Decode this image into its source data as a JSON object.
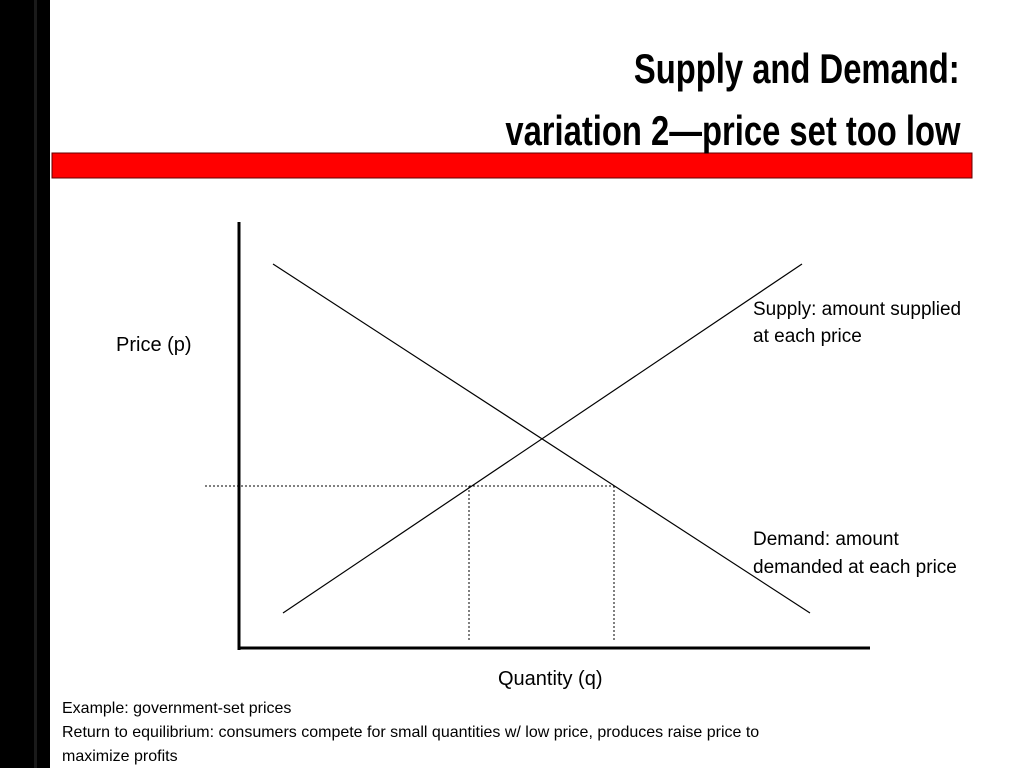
{
  "header": {
    "title": [
      "Supply and Demand:",
      "variation 2—price set too low"
    ]
  },
  "diagram": {
    "y_axis_label": "Price (p)",
    "x_axis_label": "Quantity (q)",
    "supply_label": [
      "Supply: amount supplied",
      "at each price"
    ],
    "demand_label": [
      "Demand: amount",
      "demanded at each price"
    ]
  },
  "notes": [
    "Example: government-set prices",
    "Return to equilibrium: consumers compete for small quantities w/ low price, produces raise price to",
    "maximize profits"
  ]
}
